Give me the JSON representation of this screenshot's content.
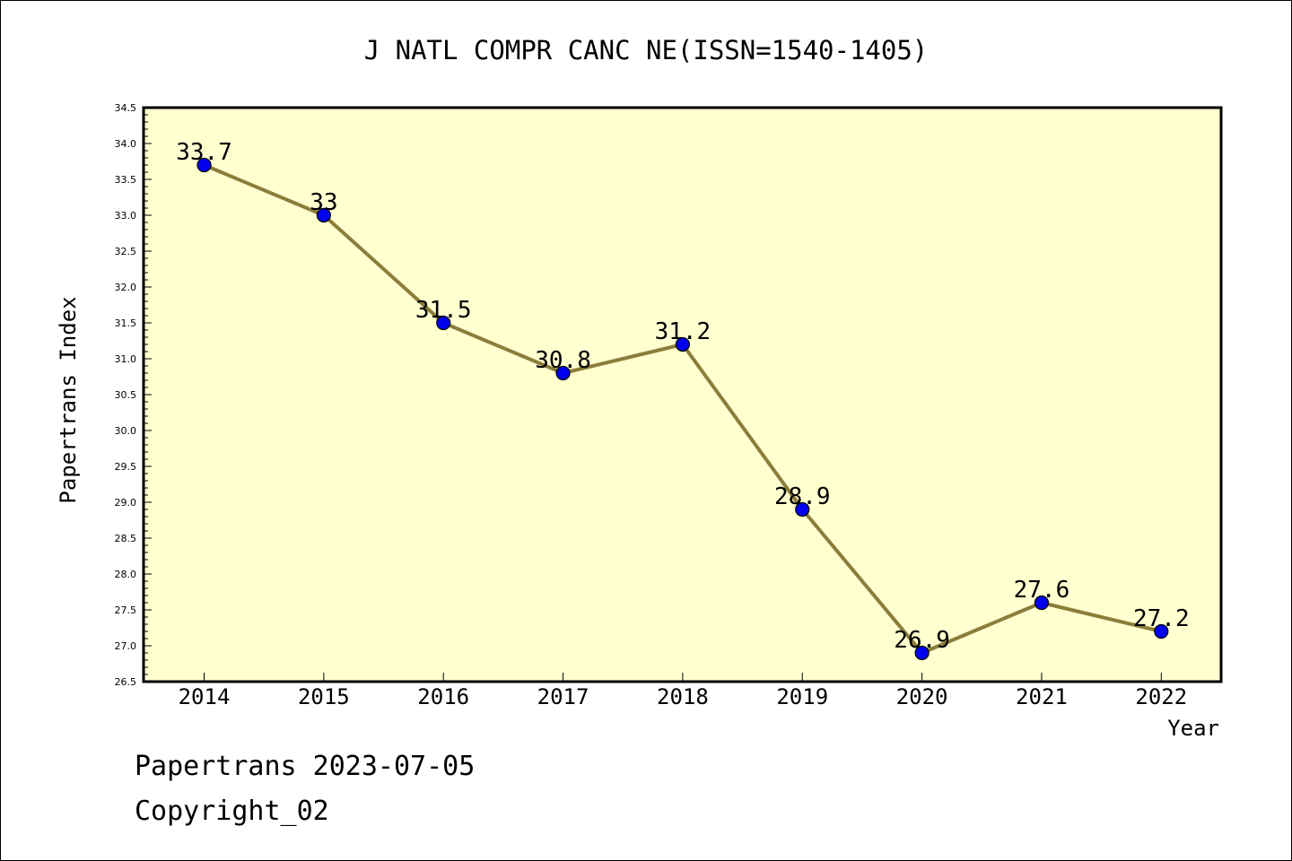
{
  "chart_data": {
    "type": "line",
    "title": "J NATL COMPR CANC NE(ISSN=1540-1405)",
    "xlabel": "Year",
    "ylabel": "Papertrans Index",
    "x": [
      "2014",
      "2015",
      "2016",
      "2017",
      "2018",
      "2019",
      "2020",
      "2021",
      "2022"
    ],
    "series": [
      {
        "values": [
          33.7,
          33,
          31.5,
          30.8,
          31.2,
          28.9,
          26.9,
          27.6,
          27.2
        ]
      }
    ],
    "data_labels": [
      "33.7",
      "33",
      "31.5",
      "30.8",
      "31.2",
      "28.9",
      "26.9",
      "27.6",
      "27.2"
    ],
    "ylim": [
      26.5,
      34.5
    ],
    "yticks": [
      "26.5",
      "27.0",
      "27.5",
      "28.0",
      "28.5",
      "29.0",
      "29.5",
      "30.0",
      "30.5",
      "31.0",
      "31.5",
      "32.0",
      "32.5",
      "33.0",
      "33.5",
      "34.0",
      "34.5"
    ],
    "grid": false,
    "colors": {
      "plot_bg": "#ffffd0",
      "line": "#8b7d3a",
      "marker": "#0000ee"
    }
  },
  "footer": {
    "line1": "Papertrans 2023-07-05",
    "line2": "Copyright_02"
  }
}
